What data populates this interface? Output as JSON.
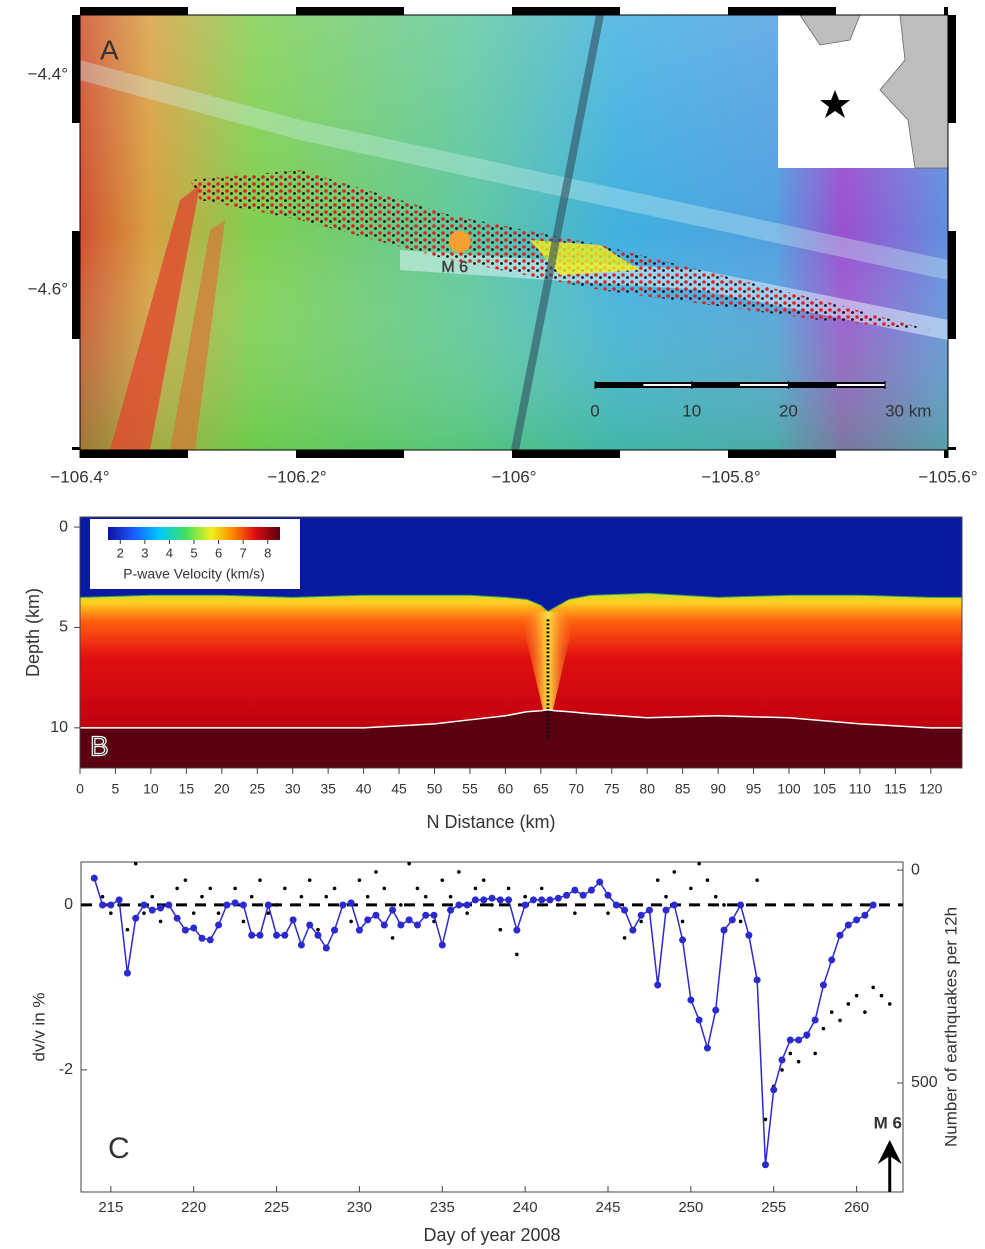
{
  "chart_data": [
    {
      "type": "map",
      "label": "A",
      "xlim": [
        -106.4,
        -105.6
      ],
      "xticks": [
        {
          "value": -106.4,
          "label": "−106.4°"
        },
        {
          "value": -106.2,
          "label": "−106.2°"
        },
        {
          "value": -106,
          "label": "−106°"
        },
        {
          "value": -105.8,
          "label": "−105.8°"
        },
        {
          "value": -105.6,
          "label": "−105.6°"
        }
      ],
      "ylim": [
        -4.749,
        -4.344
      ],
      "yticks": [
        {
          "value": -4.4,
          "label": "−4.4°"
        },
        {
          "value": -4.6,
          "label": "−4.6°"
        }
      ],
      "mainshock": {
        "x": -106.05,
        "y": -4.555,
        "label": "M 6",
        "color": "#f5a030"
      },
      "scale_bar": {
        "ticks": [
          0,
          10,
          20,
          {
            "value": 30,
            "label": "30 km"
          }
        ]
      }
    },
    {
      "type": "section",
      "label": "B",
      "xlabel": "N Distance (km)",
      "ylabel": "Depth (km)",
      "xlim": [
        0,
        124.4
      ],
      "xticks": [
        0,
        5,
        10,
        15,
        20,
        25,
        30,
        35,
        40,
        45,
        50,
        55,
        60,
        65,
        70,
        75,
        80,
        85,
        90,
        95,
        100,
        105,
        110,
        115,
        120
      ],
      "ylim": [
        12,
        -0.5
      ],
      "yticks": [
        0,
        5,
        10
      ],
      "x": [
        0,
        10,
        20,
        30,
        40,
        50,
        55,
        60,
        63,
        65,
        66,
        67,
        69,
        72,
        80,
        90,
        100,
        110,
        120,
        124.4
      ],
      "seafloor_depth": [
        3.5,
        3.4,
        3.4,
        3.5,
        3.4,
        3.4,
        3.4,
        3.5,
        3.6,
        3.9,
        4.2,
        4.0,
        3.6,
        3.4,
        3.3,
        3.5,
        3.4,
        3.4,
        3.5,
        3.5
      ],
      "moho_depth": [
        10,
        10,
        10,
        10,
        10,
        9.8,
        9.6,
        9.4,
        9.2,
        9.15,
        9.1,
        9.15,
        9.2,
        9.3,
        9.5,
        9.4,
        9.5,
        9.8,
        10,
        10
      ],
      "colorbar": {
        "label": "P-wave Velocity (km/s)",
        "lim": [
          1.5,
          8.5
        ],
        "ticks": [
          2,
          3,
          4,
          5,
          6,
          7,
          8
        ]
      }
    },
    {
      "type": "line",
      "label": "C",
      "xlabel": "Day of year 2008",
      "ylabel": "dv/v in %",
      "y2label": "Number of earthquakes per 12h",
      "xlim": [
        213.2,
        262.8
      ],
      "xticks": [
        215,
        220,
        225,
        230,
        235,
        240,
        245,
        250,
        255,
        260
      ],
      "ylim": [
        -3.48,
        0.52
      ],
      "yticks": [
        -2,
        0
      ],
      "y2lim": [
        756,
        -19
      ],
      "y2ticks": [
        0,
        500
      ],
      "hline": 0,
      "annotation": {
        "text": "M 6",
        "x": 262
      },
      "series": [
        {
          "color": "#000000",
          "marker": "dot",
          "line": false,
          "x": [
            214.5,
            215,
            215.5,
            216,
            216.5,
            217,
            217.5,
            218,
            218.5,
            219,
            219.5,
            220,
            220.5,
            221,
            221.5,
            222,
            222.5,
            223,
            223.5,
            224,
            224.5,
            225,
            225.5,
            226,
            226.5,
            227,
            227.5,
            228,
            228.5,
            229,
            229.5,
            230,
            230.5,
            231,
            231.5,
            232,
            232.5,
            233,
            233.5,
            234,
            234.5,
            235,
            235.5,
            236,
            236.5,
            237,
            237.5,
            238,
            238.5,
            239,
            239.5,
            240,
            241,
            242,
            243,
            244,
            245,
            246,
            247,
            248,
            248.5,
            249,
            249.5,
            250,
            250.5,
            251,
            251.5,
            252,
            253,
            254,
            254.5,
            255,
            255.5,
            256,
            256.5,
            257,
            257.5,
            258,
            258.5,
            259,
            259.5,
            260,
            260.5,
            261,
            261.5,
            262
          ],
          "values": [
            0.1,
            -0.1,
            0,
            -0.3,
            0.5,
            -0.1,
            0.1,
            -0.2,
            0,
            0.2,
            0.3,
            -0.1,
            0.1,
            0.2,
            -0.1,
            0,
            0.2,
            -0.2,
            0.1,
            0.3,
            -0.1,
            0,
            0.2,
            -0.2,
            0.1,
            0.3,
            -0.3,
            0.1,
            0.2,
            0,
            -0.2,
            0.3,
            0.1,
            0.4,
            0.2,
            -0.4,
            0,
            0.5,
            0.2,
            0.1,
            -0.2,
            0.3,
            0.1,
            0.4,
            -0.1,
            0.2,
            0.3,
            0,
            -0.3,
            0.2,
            -0.6,
            0.1,
            0.2,
            0,
            -0.1,
            0.2,
            -0.1,
            -0.4,
            -0.2,
            0.3,
            0.1,
            0.4,
            -0.2,
            0.2,
            0.5,
            0.3,
            0.1,
            0,
            -0.2,
            0.3,
            -2.6,
            -2.2,
            -2,
            -1.8,
            -1.9,
            -1.6,
            -1.8,
            -1.5,
            -1.3,
            -1.4,
            -1.2,
            -1.1,
            -1.3,
            -1,
            -1.1,
            -1.2
          ]
        },
        {
          "color": "#2a2ad0",
          "marker": "circle",
          "line": true,
          "axis": "y2",
          "x": [
            214,
            214.5,
            215,
            215.5,
            216,
            216.5,
            217,
            217.5,
            218,
            218.5,
            219,
            219.5,
            220,
            220.5,
            221,
            221.5,
            222,
            222.5,
            223,
            223.5,
            224,
            224.5,
            225,
            225.5,
            226,
            226.5,
            227,
            227.5,
            228,
            228.5,
            229,
            229.5,
            230,
            230.5,
            231,
            231.5,
            232,
            232.5,
            233,
            233.5,
            234,
            234.5,
            235,
            235.5,
            236,
            236.5,
            237,
            237.5,
            238,
            238.5,
            239,
            239.5,
            240,
            240.5,
            241,
            241.5,
            242,
            242.5,
            243,
            243.5,
            244,
            244.5,
            245,
            245.5,
            246,
            246.5,
            247,
            247.5,
            248,
            248.5,
            249,
            249.5,
            250,
            250.5,
            251,
            251.5,
            252,
            252.5,
            253,
            253.5,
            254,
            254.5,
            255,
            255.5,
            256,
            256.5,
            257,
            257.5,
            258,
            258.5,
            259,
            259.5,
            260,
            260.5,
            261
          ],
          "values": [
            19,
            82,
            82,
            70,
            242,
            113,
            82,
            94,
            89,
            82,
            113,
            141,
            136,
            160,
            164,
            129,
            82,
            77,
            82,
            153,
            153,
            82,
            153,
            153,
            117,
            176,
            129,
            153,
            183,
            141,
            82,
            77,
            141,
            117,
            106,
            129,
            94,
            129,
            117,
            129,
            106,
            106,
            176,
            94,
            82,
            82,
            70,
            70,
            66,
            70,
            70,
            141,
            82,
            70,
            70,
            70,
            66,
            59,
            47,
            59,
            47,
            28,
            59,
            82,
            94,
            141,
            106,
            94,
            270,
            94,
            82,
            164,
            305,
            352,
            418,
            329,
            141,
            117,
            82,
            153,
            258,
            692,
            516,
            446,
            399,
            399,
            387,
            352,
            270,
            211,
            153,
            129,
            117,
            106,
            82
          ]
        }
      ]
    }
  ]
}
